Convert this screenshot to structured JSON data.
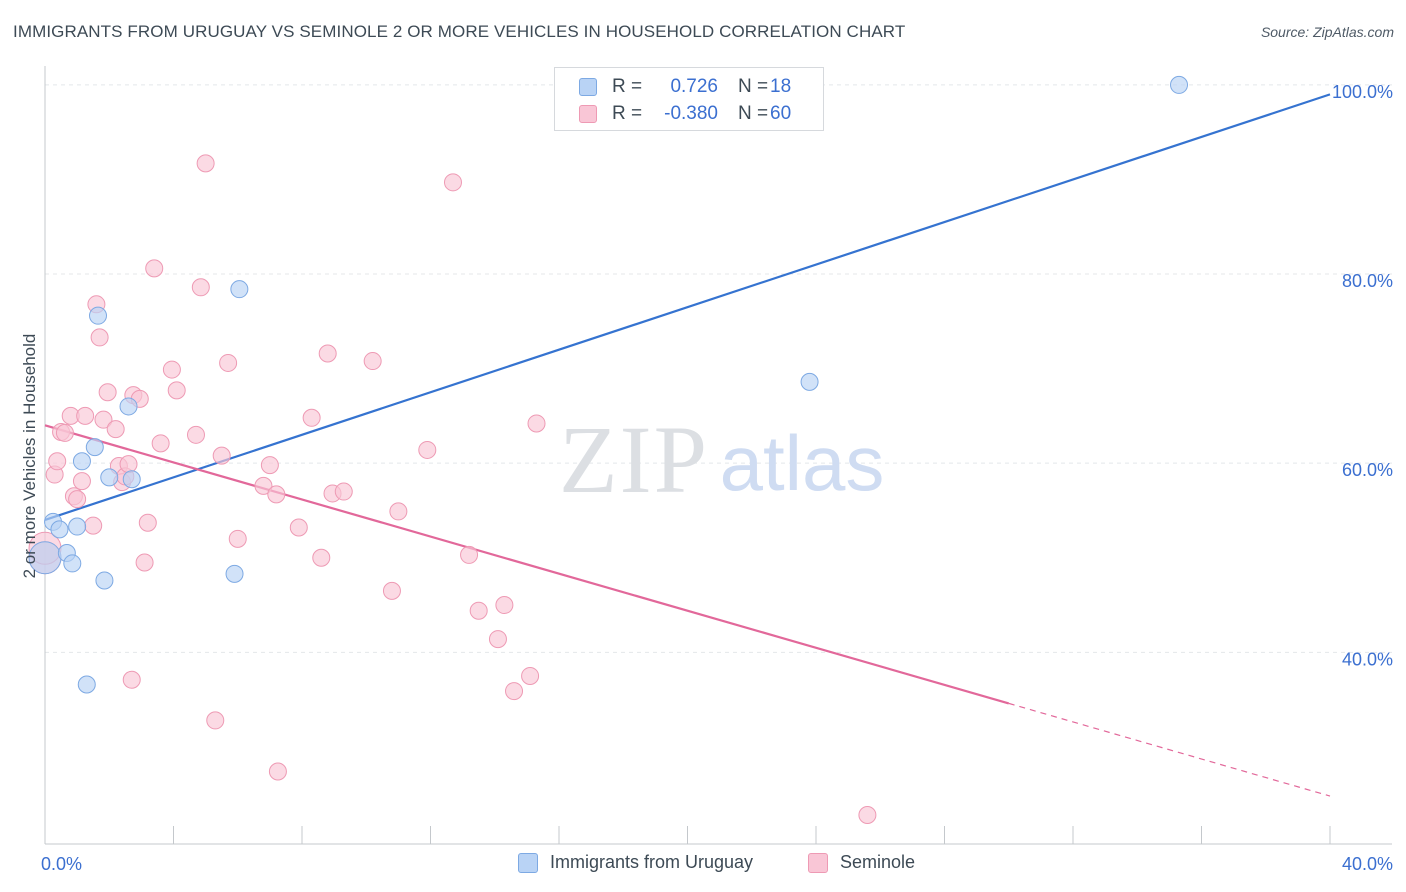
{
  "title": "IMMIGRANTS FROM URUGUAY VS SEMINOLE 2 OR MORE VEHICLES IN HOUSEHOLD CORRELATION CHART",
  "source": "Source: ZipAtlas.com",
  "watermark": {
    "zip": "ZIP",
    "atlas": "atlas"
  },
  "legend_top": [
    {
      "r_label": "R =",
      "r_value": "0.726",
      "n_label": "N =",
      "n_value": "18"
    },
    {
      "r_label": "R =",
      "r_value": "-0.380",
      "n_label": "N =",
      "n_value": "60"
    }
  ],
  "legend_bottom": [
    {
      "label": "Immigrants from Uruguay"
    },
    {
      "label": "Seminole"
    }
  ],
  "colors": {
    "uruguay_fill": "#b9d3f5",
    "uruguay_stroke": "#7da9e3",
    "uruguay_line": "#3573d0",
    "seminole_fill": "#f9c6d6",
    "seminole_stroke": "#ee9ab4",
    "seminole_line": "#e2689a",
    "axis_text": "#3b6fd0",
    "grid": "#e4e7ea"
  },
  "chart_data": {
    "type": "scatter",
    "title": "IMMIGRANTS FROM URUGUAY VS SEMINOLE 2 OR MORE VEHICLES IN HOUSEHOLD CORRELATION CHART",
    "xlabel": "",
    "ylabel": "2 or more Vehicles in Household",
    "xlim": [
      0,
      40
    ],
    "ylim": [
      21,
      102
    ],
    "x_tick_labels": [
      {
        "value": 0,
        "label": "0.0%"
      },
      {
        "value": 40,
        "label": "40.0%"
      }
    ],
    "y_tick_labels": [
      {
        "value": 40,
        "label": "40.0%"
      },
      {
        "value": 60,
        "label": "60.0%"
      },
      {
        "value": 80,
        "label": "80.0%"
      },
      {
        "value": 100,
        "label": "100.0%"
      }
    ],
    "series": [
      {
        "name": "Immigrants from Uruguay",
        "points": [
          [
            0.0,
            50.0
          ],
          [
            0.25,
            53.8
          ],
          [
            0.45,
            53.0
          ],
          [
            0.68,
            50.5
          ],
          [
            0.85,
            49.4
          ],
          [
            1.0,
            53.3
          ],
          [
            1.15,
            60.2
          ],
          [
            1.3,
            36.6
          ],
          [
            1.55,
            61.7
          ],
          [
            1.65,
            75.6
          ],
          [
            1.85,
            47.6
          ],
          [
            2.0,
            58.5
          ],
          [
            2.6,
            66.0
          ],
          [
            2.7,
            58.3
          ],
          [
            5.9,
            48.3
          ],
          [
            6.05,
            78.4
          ],
          [
            23.8,
            68.6
          ],
          [
            35.3,
            100.0
          ]
        ],
        "trend": {
          "x": [
            0,
            40
          ],
          "y": [
            54.0,
            99.0
          ]
        }
      },
      {
        "name": "Seminole",
        "points": [
          [
            0.0,
            50.0
          ],
          [
            0.3,
            58.8
          ],
          [
            0.38,
            60.2
          ],
          [
            0.5,
            63.3
          ],
          [
            0.62,
            63.2
          ],
          [
            0.8,
            65.0
          ],
          [
            0.9,
            56.5
          ],
          [
            1.0,
            56.2
          ],
          [
            1.15,
            58.1
          ],
          [
            1.25,
            65.0
          ],
          [
            1.5,
            53.4
          ],
          [
            1.6,
            76.8
          ],
          [
            1.7,
            73.3
          ],
          [
            1.82,
            64.6
          ],
          [
            1.95,
            67.5
          ],
          [
            2.2,
            63.6
          ],
          [
            2.3,
            59.7
          ],
          [
            2.4,
            58.0
          ],
          [
            2.5,
            58.6
          ],
          [
            2.6,
            59.9
          ],
          [
            2.7,
            37.1
          ],
          [
            2.75,
            67.2
          ],
          [
            2.95,
            66.8
          ],
          [
            3.1,
            49.5
          ],
          [
            3.2,
            53.7
          ],
          [
            3.4,
            80.6
          ],
          [
            3.6,
            62.1
          ],
          [
            3.95,
            69.9
          ],
          [
            4.1,
            67.7
          ],
          [
            4.7,
            63.0
          ],
          [
            4.85,
            78.6
          ],
          [
            5.0,
            91.7
          ],
          [
            5.3,
            32.8
          ],
          [
            5.5,
            60.8
          ],
          [
            5.7,
            70.6
          ],
          [
            6.0,
            52.0
          ],
          [
            6.8,
            57.6
          ],
          [
            7.0,
            59.8
          ],
          [
            7.2,
            56.7
          ],
          [
            7.25,
            27.4
          ],
          [
            7.9,
            53.2
          ],
          [
            8.3,
            64.8
          ],
          [
            8.6,
            50.0
          ],
          [
            8.8,
            71.6
          ],
          [
            8.95,
            56.8
          ],
          [
            9.3,
            57.0
          ],
          [
            10.2,
            70.8
          ],
          [
            10.8,
            46.5
          ],
          [
            11.0,
            54.9
          ],
          [
            11.9,
            61.4
          ],
          [
            12.7,
            89.7
          ],
          [
            13.2,
            50.3
          ],
          [
            13.5,
            44.4
          ],
          [
            14.1,
            41.4
          ],
          [
            14.3,
            45.0
          ],
          [
            14.6,
            35.9
          ],
          [
            15.1,
            37.5
          ],
          [
            15.3,
            64.2
          ],
          [
            25.6,
            22.8
          ],
          [
            0.0,
            51.0
          ]
        ],
        "trend": {
          "x": [
            0,
            30
          ],
          "y": [
            64.0,
            34.6
          ]
        },
        "trend_dashed": {
          "x": [
            30,
            40
          ],
          "y": [
            34.6,
            24.8
          ]
        }
      }
    ]
  }
}
